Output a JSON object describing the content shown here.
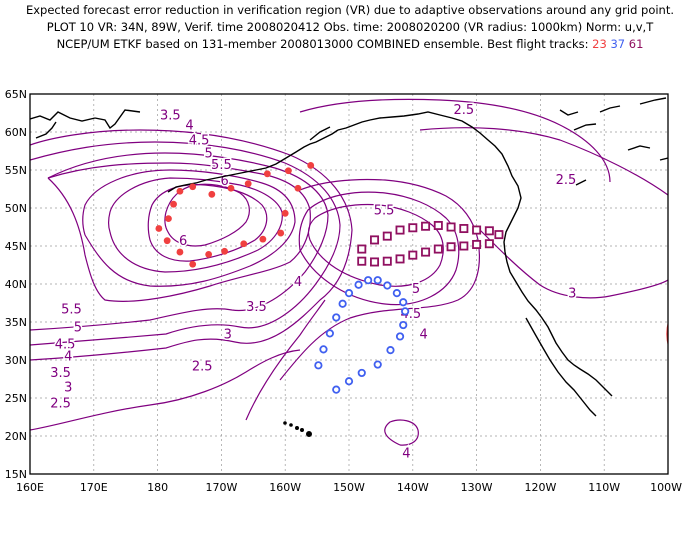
{
  "title": {
    "line1": "Expected forecast error reduction in verification region (VR) due to adaptive observations around any grid point.",
    "line2": "PLOT 10 VR: 34N, 89W, Verif. time 2008020412 Obs. time: 2008020200 (VR radius: 1000km) Norm: u,v,T",
    "line3_prefix": "NCEP/UM ETKF based on 131-member 2008013000 COMBINED ensemble.  Best flight tracks:",
    "track_ids": [
      "23",
      "37",
      "61"
    ]
  },
  "colors": {
    "contour": "#800080",
    "coast": "#000000",
    "grid": "#9a9a9a",
    "track_23": "#f04040",
    "track_37": "#4060f0",
    "track_61": "#901060",
    "verification_region": "#f03030"
  },
  "lat_labels": [
    "65N",
    "60N",
    "55N",
    "50N",
    "45N",
    "40N",
    "35N",
    "30N",
    "25N",
    "20N",
    "15N"
  ],
  "lon_labels": [
    "160E",
    "170E",
    "180",
    "170W",
    "160W",
    "150W",
    "140W",
    "130W",
    "120W",
    "110W",
    "100W"
  ],
  "contour_labels": [
    {
      "text": "3.5",
      "lon": 182,
      "lat": 62.3
    },
    {
      "text": "4",
      "lon": 185,
      "lat": 61
    },
    {
      "text": "4.5",
      "lon": 186.5,
      "lat": 59
    },
    {
      "text": "5",
      "lon": 188,
      "lat": 57.3
    },
    {
      "text": "5.5",
      "lon": 190,
      "lat": 55.8
    },
    {
      "text": "6",
      "lon": 190.5,
      "lat": 53.7
    },
    {
      "text": "6",
      "lon": 184,
      "lat": 45.8
    },
    {
      "text": "5.5",
      "lon": 215.5,
      "lat": 49.8
    },
    {
      "text": "2.5",
      "lon": 228,
      "lat": 63
    },
    {
      "text": "2.5",
      "lon": 244,
      "lat": 53.8
    },
    {
      "text": "5.5",
      "lon": 166.5,
      "lat": 36.8
    },
    {
      "text": "5",
      "lon": 167.5,
      "lat": 34.4
    },
    {
      "text": "4.5",
      "lon": 165.5,
      "lat": 32.2
    },
    {
      "text": "4",
      "lon": 166,
      "lat": 30.6
    },
    {
      "text": "3.5",
      "lon": 164.8,
      "lat": 28.4
    },
    {
      "text": "3",
      "lon": 166,
      "lat": 26.5
    },
    {
      "text": "2.5",
      "lon": 164.8,
      "lat": 24.4
    },
    {
      "text": "2.5",
      "lon": 187,
      "lat": 29.3
    },
    {
      "text": "3",
      "lon": 191,
      "lat": 33.5
    },
    {
      "text": "3.5",
      "lon": 195.5,
      "lat": 37.1
    },
    {
      "text": "4",
      "lon": 202,
      "lat": 40.4
    },
    {
      "text": "4.5",
      "lon": 219.7,
      "lat": 36.2
    },
    {
      "text": "5",
      "lon": 220.5,
      "lat": 39.5
    },
    {
      "text": "4",
      "lon": 221.7,
      "lat": 33.5
    },
    {
      "text": "3",
      "lon": 245,
      "lat": 38.9
    },
    {
      "text": "4",
      "lon": 219,
      "lat": 17.8
    }
  ],
  "tracks": [
    {
      "id": "23",
      "points": [
        [
          204,
          55.6
        ],
        [
          202,
          52.6
        ],
        [
          200,
          49.3
        ],
        [
          199.3,
          46.7
        ],
        [
          196.5,
          45.9
        ],
        [
          193.5,
          45.3
        ],
        [
          190.5,
          44.3
        ],
        [
          188,
          43.9
        ],
        [
          185.5,
          42.6
        ],
        [
          183.5,
          44.2
        ],
        [
          181.5,
          45.7
        ],
        [
          180.2,
          47.3
        ],
        [
          181.7,
          48.6
        ],
        [
          182.5,
          50.5
        ],
        [
          183.5,
          52.2
        ],
        [
          185.5,
          52.8
        ],
        [
          188.5,
          51.8
        ],
        [
          191.5,
          52.6
        ],
        [
          194.2,
          53.2
        ],
        [
          197.2,
          54.5
        ],
        [
          200.5,
          54.9
        ]
      ]
    },
    {
      "id": "37",
      "points": [
        [
          208,
          26.1
        ],
        [
          210,
          27.2
        ],
        [
          212,
          28.3
        ],
        [
          214.5,
          29.4
        ],
        [
          216.5,
          31.3
        ],
        [
          218,
          33.1
        ],
        [
          218.5,
          34.6
        ],
        [
          218.8,
          36.4
        ],
        [
          218.5,
          37.6
        ],
        [
          217.5,
          38.8
        ],
        [
          216,
          39.8
        ],
        [
          214.5,
          40.5
        ],
        [
          213,
          40.5
        ],
        [
          211.5,
          39.9
        ],
        [
          210,
          38.8
        ],
        [
          209,
          37.4
        ],
        [
          208,
          35.6
        ],
        [
          207,
          33.5
        ],
        [
          206,
          31.4
        ],
        [
          205.2,
          29.3
        ]
      ]
    },
    {
      "id": "61",
      "points": [
        [
          212,
          43
        ],
        [
          214,
          42.9
        ],
        [
          216,
          43
        ],
        [
          218,
          43.3
        ],
        [
          220,
          43.8
        ],
        [
          222,
          44.2
        ],
        [
          224,
          44.6
        ],
        [
          226,
          44.9
        ],
        [
          228,
          45
        ],
        [
          230,
          45.2
        ],
        [
          232,
          45.3
        ],
        [
          233.5,
          46.5
        ],
        [
          232,
          47
        ],
        [
          230,
          47.1
        ],
        [
          228,
          47.3
        ],
        [
          226,
          47.5
        ],
        [
          224,
          47.7
        ],
        [
          222,
          47.6
        ],
        [
          220,
          47.4
        ],
        [
          218,
          47.1
        ],
        [
          216,
          46.3
        ],
        [
          214,
          45.8
        ],
        [
          212,
          44.6
        ]
      ]
    }
  ]
}
